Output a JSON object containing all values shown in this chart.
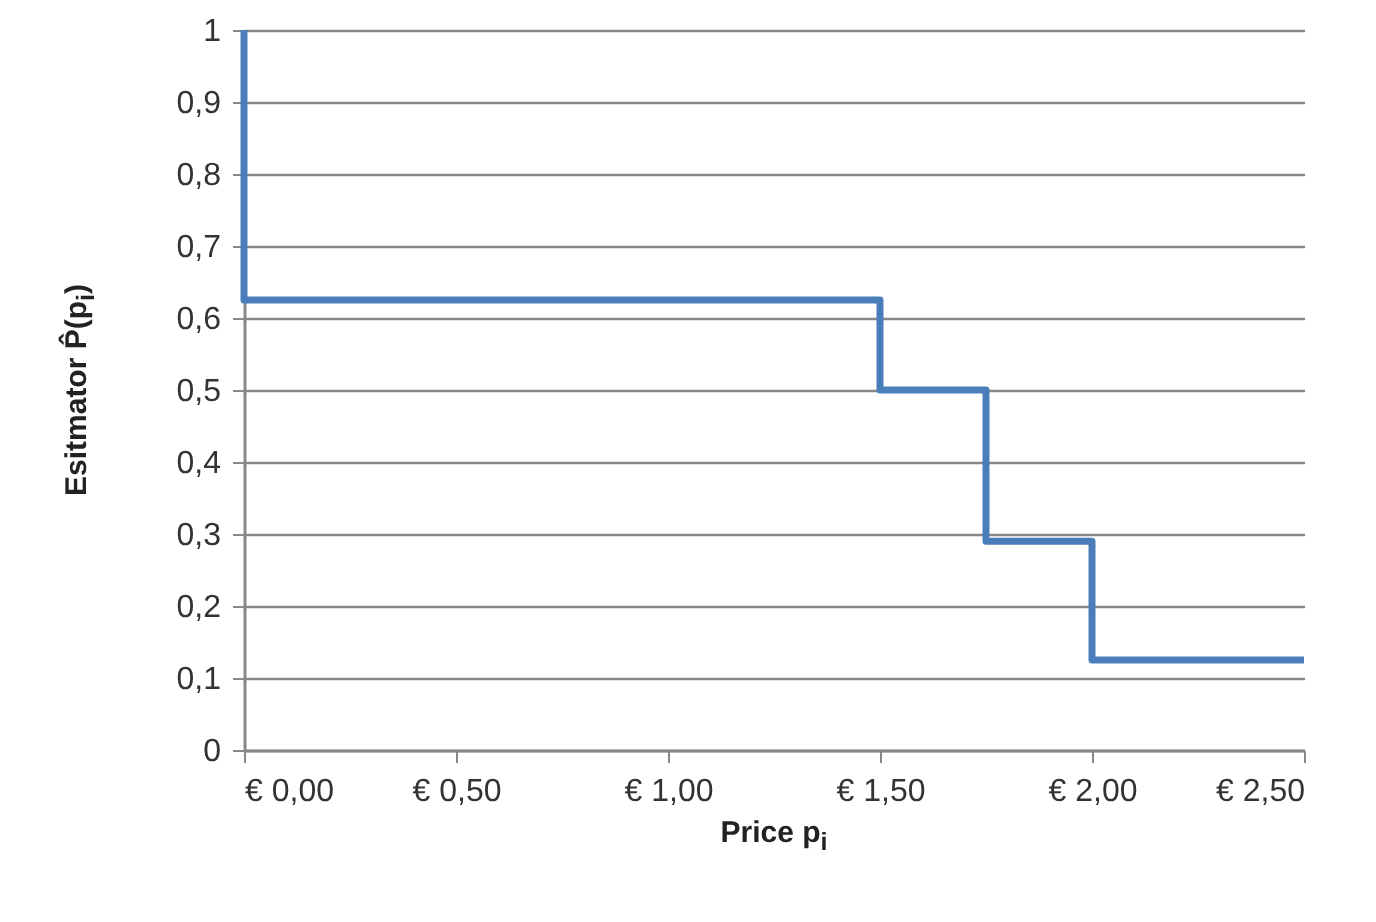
{
  "chart_data": {
    "type": "step",
    "xlabel": "Price p$_{i}$",
    "ylabel": "Esitmator P̂(p$_{i}$)",
    "x": [
      0,
      0,
      1.5,
      1.75,
      2.0,
      2.5
    ],
    "series": [
      {
        "color": "#4a7ebb",
        "values": [
          1,
          0.625,
          0.5,
          0.29,
          0.125,
          0.125
        ]
      }
    ],
    "xlim": [
      0,
      2.5
    ],
    "xticks": [
      {
        "value": 0,
        "label": "€ 0,00"
      },
      {
        "value": 0.5,
        "label": "€ 0,50"
      },
      {
        "value": 1,
        "label": "€ 1,00"
      },
      {
        "value": 1.5,
        "label": "€ 1,50"
      },
      {
        "value": 2,
        "label": "€ 2,00"
      },
      {
        "value": 2.5,
        "label": "€ 2,50"
      }
    ],
    "ylim": [
      0,
      1
    ],
    "yticks": [
      0,
      {
        "value": 0.1,
        "label": "0,1"
      },
      {
        "value": 0.2,
        "label": "0,2"
      },
      {
        "value": 0.3,
        "label": "0,3"
      },
      {
        "value": 0.4,
        "label": "0,4"
      },
      {
        "value": 0.5,
        "label": "0,5"
      },
      {
        "value": 0.6,
        "label": "0,6"
      },
      {
        "value": 0.7,
        "label": "0,7"
      },
      {
        "value": 0.8,
        "label": "0,8"
      },
      {
        "value": 0.9,
        "label": "0,9"
      },
      1
    ],
    "grid": "y",
    "marker": "none",
    "line_style": "solid"
  }
}
